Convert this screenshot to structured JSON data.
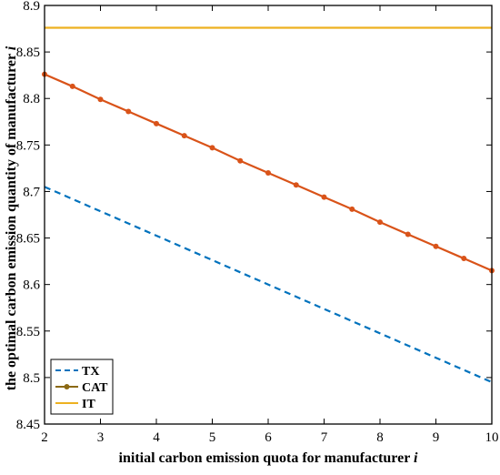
{
  "chart_data": {
    "type": "line",
    "xlabel": "initial carbon emission quota for manufacturer",
    "xlabel_var": "i",
    "ylabel": "the optimal carbon emission quantity of manufacturer",
    "ylabel_var": "i",
    "xlim": [
      2,
      10
    ],
    "ylim": [
      8.45,
      8.9
    ],
    "x_ticks": [
      "2",
      "3",
      "4",
      "5",
      "6",
      "7",
      "8",
      "9",
      "10"
    ],
    "y_ticks": [
      "8.45",
      "8.5",
      "8.55",
      "8.6",
      "8.65",
      "8.7",
      "8.75",
      "8.8",
      "8.85",
      "8.9"
    ],
    "grid": false,
    "legend_position": "bottom-left",
    "series": [
      {
        "name": "TX",
        "color": "#0072BD",
        "style": "dashed",
        "x": [
          2,
          10
        ],
        "y": [
          8.705,
          8.495
        ]
      },
      {
        "name": "CAT",
        "color": "#D95319",
        "style": "solid-markers",
        "x": [
          2,
          2.5,
          3,
          3.5,
          4,
          4.5,
          5,
          5.5,
          6,
          6.5,
          7,
          7.5,
          8,
          8.5,
          9,
          9.5,
          10
        ],
        "y": [
          8.826,
          8.813,
          8.799,
          8.786,
          8.773,
          8.76,
          8.747,
          8.733,
          8.72,
          8.707,
          8.694,
          8.681,
          8.667,
          8.654,
          8.641,
          8.628,
          8.615
        ]
      },
      {
        "name": "IT",
        "color": "#EDB120",
        "style": "solid",
        "x": [
          2,
          10
        ],
        "y": [
          8.876,
          8.876
        ]
      }
    ]
  }
}
